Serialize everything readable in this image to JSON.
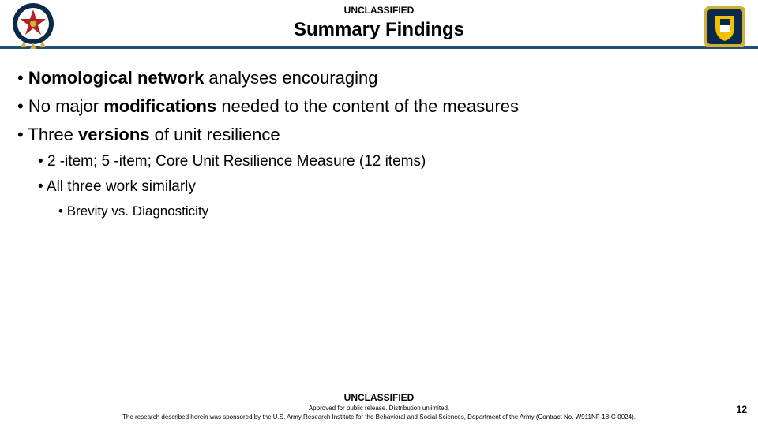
{
  "header": {
    "classification": "UNCLASSIFIED",
    "title": "Summary Findings",
    "rule_color": "#1f4e79"
  },
  "logos": {
    "left": {
      "name": "chief-of-staff-seal",
      "outer_color": "#0a2a4a",
      "inner_color": "#ffffff",
      "star_color": "#d4af37",
      "accent_color": "#b22222"
    },
    "right": {
      "name": "ari-shield",
      "shield_outer": "#0a2a4a",
      "shield_inner": "#f2c200",
      "frame_color": "#d4af37"
    }
  },
  "bullets": [
    {
      "level": 1,
      "html_parts": [
        {
          "bold": true,
          "t": "Nomological network"
        },
        {
          "bold": false,
          "t": " analyses encouraging"
        }
      ]
    },
    {
      "level": 1,
      "html_parts": [
        {
          "bold": false,
          "t": "No major "
        },
        {
          "bold": true,
          "t": "modifications"
        },
        {
          "bold": false,
          "t": " needed to the content of the measures"
        }
      ]
    },
    {
      "level": 1,
      "html_parts": [
        {
          "bold": false,
          "t": "Three "
        },
        {
          "bold": true,
          "t": "versions"
        },
        {
          "bold": false,
          "t": " of unit resilience"
        }
      ]
    },
    {
      "level": 2,
      "html_parts": [
        {
          "bold": false,
          "t": "2 -item; 5 -item; Core Unit Resilience Measure (12 items)"
        }
      ]
    },
    {
      "level": 2,
      "html_parts": [
        {
          "bold": false,
          "t": "All three work similarly"
        }
      ]
    },
    {
      "level": 3,
      "html_parts": [
        {
          "bold": false,
          "t": "Brevity vs. Diagnosticity"
        }
      ]
    }
  ],
  "footer": {
    "classification": "UNCLASSIFIED",
    "line1": "Approved for public release. Distribution unlimited.",
    "line2": "The research described herein was sponsored by the U.S. Army Research Institute for the Behavioral and Social Sciences, Department of the Army (Contract No. W911NF-18-C-0024).",
    "page_number": "12"
  }
}
